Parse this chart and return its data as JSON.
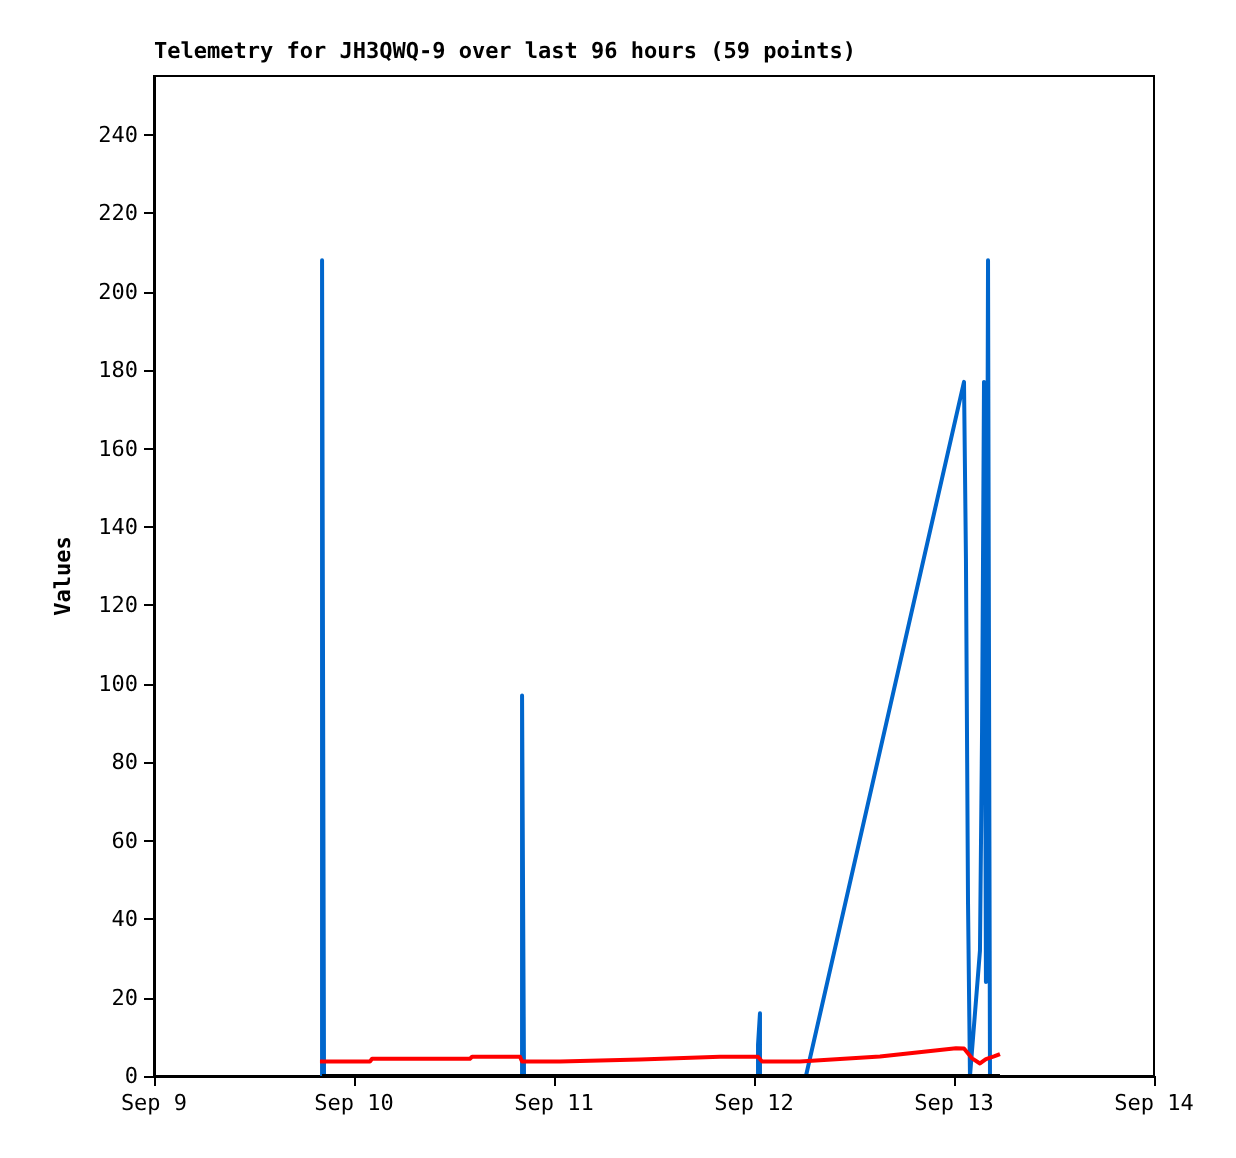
{
  "chart_data": {
    "type": "line",
    "title": "Telemetry for JH3QWQ-9 over last 96 hours (59 points)",
    "ylabel": "Values",
    "xlim": [
      "--09-09",
      "--09-14"
    ],
    "xticks": [
      {
        "value": "--09-09",
        "label": "Sep 9"
      },
      {
        "value": "--09-10",
        "label": "Sep 10"
      },
      {
        "value": "--09-11",
        "label": "Sep 11"
      },
      {
        "value": "--09-12",
        "label": "Sep 12"
      },
      {
        "value": "--09-13",
        "label": "Sep 13"
      },
      {
        "value": "--09-14",
        "label": "Sep 14"
      }
    ],
    "ylim": [
      0,
      255
    ],
    "yticks": [
      0,
      20,
      40,
      60,
      80,
      100,
      120,
      140,
      160,
      180,
      200,
      220,
      240
    ],
    "grid": false,
    "marker": "none",
    "line_style": "solid",
    "series": [
      {
        "color": "#0066cc",
        "x": [
          "--09-09T20:10",
          "--09-09T20:10",
          "--09-09T20:24",
          "--09-10T20:10",
          "--09-10T20:10",
          "--09-10T20:24",
          "--09-12T00:29",
          "--09-12T00:29",
          "--09-12T00:43",
          "--09-12T00:43",
          "--09-12T06:14",
          "--09-13T01:12",
          "--09-13T01:26",
          "--09-13T01:41",
          "--09-13T01:55",
          "--09-13T03:07",
          "--09-13T03:22",
          "--09-13T03:36",
          "--09-13T03:50",
          "--09-13T04:05",
          "--09-13T04:19"
        ],
        "values": [
          0,
          208,
          0,
          0,
          97,
          0,
          0,
          8,
          16,
          0,
          0,
          177,
          132,
          44,
          0,
          32,
          88,
          177,
          24,
          208,
          0
        ]
      },
      {
        "color": "#000000",
        "x": [
          "--09-09T20:10",
          "--09-13T05:31"
        ],
        "values": [
          0,
          0
        ]
      },
      {
        "color": "#ff0000",
        "x": [
          "--09-09T19:55",
          "--09-10T01:55",
          "--09-10T02:10",
          "--09-10T13:55",
          "--09-10T14:10",
          "--09-10T19:55",
          "--09-10T20:10",
          "--09-11T00:43",
          "--09-11T10:19",
          "--09-11T19:55",
          "--09-12T00:29",
          "--09-12T00:58",
          "--09-12T05:31",
          "--09-12T15:07",
          "--09-13T00:14",
          "--09-13T01:12",
          "--09-13T02:10",
          "--09-13T03:07",
          "--09-13T03:50",
          "--09-13T04:48",
          "--09-13T05:31"
        ],
        "values": [
          3.7,
          3.7,
          4.4,
          4.4,
          4.9,
          4.9,
          3.7,
          3.7,
          4.2,
          4.9,
          4.9,
          3.7,
          3.7,
          5.0,
          7.1,
          7.0,
          4.5,
          3.2,
          4.3,
          5.0,
          5.6
        ]
      }
    ]
  }
}
